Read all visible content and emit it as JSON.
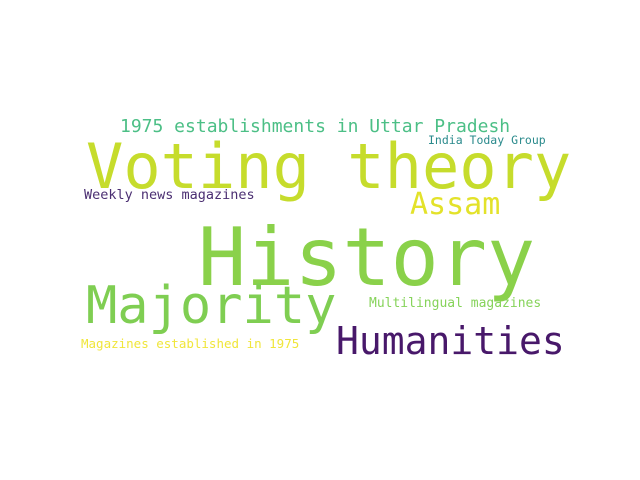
{
  "word_cloud": {
    "words": [
      {
        "id": "history",
        "text": "History",
        "color": "#8ad14a"
      },
      {
        "id": "voting",
        "text": "Voting theory",
        "color": "#c6dc2c"
      },
      {
        "id": "majority",
        "text": "Majority",
        "color": "#7fce52"
      },
      {
        "id": "humanities",
        "text": "Humanities",
        "color": "#48186a"
      },
      {
        "id": "assam",
        "text": "Assam",
        "color": "#e3e22a"
      },
      {
        "id": "uttar",
        "text": "1975 establishments in Uttar Pradesh",
        "color": "#4cbf86"
      },
      {
        "id": "weekly",
        "text": "Weekly news magazines",
        "color": "#4b2f72"
      },
      {
        "id": "multilingual",
        "text": "Multilingual magazines",
        "color": "#86d35a"
      },
      {
        "id": "magazines75",
        "text": "Magazines established in 1975",
        "color": "#f0e63a"
      },
      {
        "id": "indiatoday",
        "text": "India Today Group",
        "color": "#2a8a8c"
      }
    ]
  }
}
